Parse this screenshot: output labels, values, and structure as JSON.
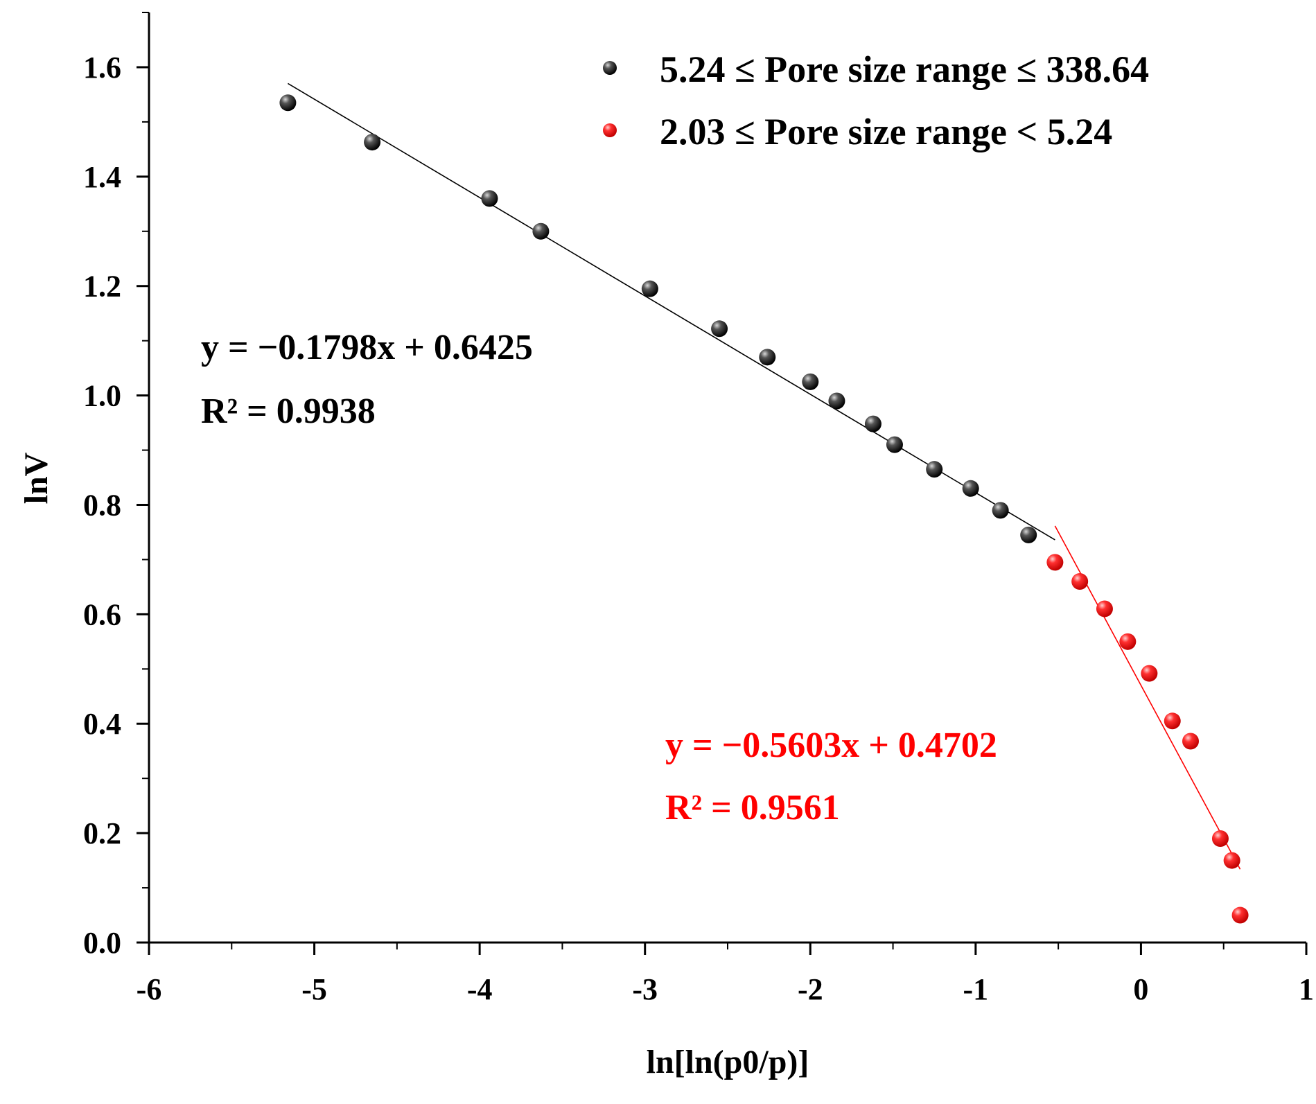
{
  "chart_data": {
    "type": "scatter",
    "title": "",
    "xlabel": "ln[ln(p0/p)]",
    "ylabel": "lnV",
    "xlim": [
      -6,
      1
    ],
    "ylim": [
      0.0,
      1.7
    ],
    "x_ticks": [
      "-6",
      "-5",
      "-4",
      "-3",
      "-2",
      "-1",
      "0",
      "1"
    ],
    "y_ticks": [
      "0.0",
      "0.2",
      "0.4",
      "0.6",
      "0.8",
      "1.0",
      "1.2",
      "1.4",
      "1.6"
    ],
    "legend_position": "top-right",
    "series": [
      {
        "name": "5.24 ≤ Pore size range ≤ 338.64",
        "color": "#000000",
        "x": [
          -5.16,
          -4.65,
          -3.94,
          -3.63,
          -2.97,
          -2.55,
          -2.26,
          -2.0,
          -1.84,
          -1.62,
          -1.49,
          -1.25,
          -1.03,
          -0.85,
          -0.68
        ],
        "y": [
          1.535,
          1.463,
          1.36,
          1.3,
          1.195,
          1.122,
          1.07,
          1.025,
          0.99,
          0.948,
          0.91,
          0.865,
          0.83,
          0.79,
          0.745
        ],
        "fit": {
          "equation": "y = −0.1798x + 0.6425",
          "r2": "R² = 0.9938",
          "slope": -0.1798,
          "intercept": 0.6425,
          "x_range": [
            -5.16,
            -0.52
          ]
        }
      },
      {
        "name": "2.03 ≤ Pore size range < 5.24",
        "color": "#ff0000",
        "x": [
          -0.52,
          -0.37,
          -0.22,
          -0.08,
          0.05,
          0.19,
          0.3,
          0.48,
          0.55,
          0.6
        ],
        "y": [
          0.695,
          0.66,
          0.61,
          0.55,
          0.492,
          0.405,
          0.368,
          0.19,
          0.15,
          0.05
        ],
        "fit": {
          "equation": "y = −0.5603x + 0.4702",
          "r2": "R² = 0.9561",
          "slope": -0.5603,
          "intercept": 0.4702,
          "x_range": [
            -0.52,
            0.6
          ]
        }
      }
    ]
  }
}
